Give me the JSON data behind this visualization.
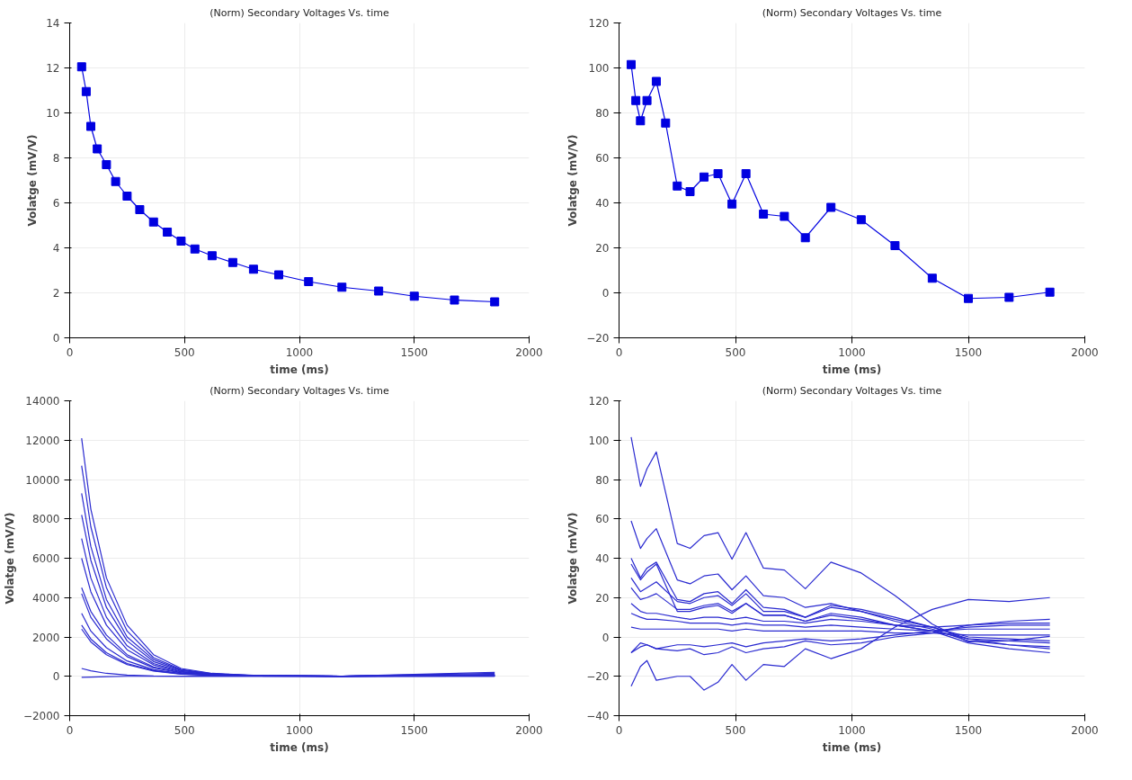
{
  "chart_data": [
    {
      "type": "line",
      "title": "(Norm) Secondary Voltages Vs. time",
      "xlabel": "time (ms)",
      "ylabel": "Volatge (mV/V)",
      "x": [
        52,
        72,
        92,
        120,
        160,
        200,
        250,
        305,
        365,
        425,
        485,
        545,
        620,
        710,
        800,
        910,
        1040,
        1185,
        1345,
        1500,
        1675,
        1850
      ],
      "xlim": [
        0,
        2000
      ],
      "xticks": [
        0,
        500,
        1000,
        1500,
        2000
      ],
      "ylim": [
        0,
        14
      ],
      "yticks": [
        0,
        2,
        4,
        6,
        8,
        10,
        12,
        14
      ],
      "grid": true,
      "marker": "square",
      "series": [
        {
          "color": "#0000e0",
          "values": [
            12.05,
            10.95,
            9.4,
            8.4,
            7.7,
            6.95,
            6.3,
            5.7,
            5.15,
            4.7,
            4.3,
            3.95,
            3.65,
            3.35,
            3.05,
            2.8,
            2.5,
            2.25,
            2.08,
            1.85,
            1.68,
            1.6
          ]
        }
      ]
    },
    {
      "type": "line",
      "title": "(Norm) Secondary Voltages Vs. time",
      "xlabel": "time (ms)",
      "ylabel": "Volatge (mV/V)",
      "x": [
        52,
        72,
        92,
        120,
        160,
        200,
        250,
        305,
        365,
        425,
        485,
        545,
        620,
        710,
        800,
        910,
        1040,
        1185,
        1345,
        1500,
        1675,
        1850
      ],
      "xlim": [
        0,
        2000
      ],
      "xticks": [
        0,
        500,
        1000,
        1500,
        2000
      ],
      "ylim": [
        -20,
        120
      ],
      "yticks": [
        -20,
        0,
        20,
        40,
        60,
        80,
        100,
        120
      ],
      "grid": true,
      "marker": "square",
      "series": [
        {
          "color": "#0000e0",
          "values": [
            101.5,
            85.5,
            76.5,
            85.5,
            94,
            75.5,
            47.5,
            45,
            51.5,
            53,
            39.5,
            53,
            35,
            34,
            24.5,
            38,
            32.5,
            21,
            6.5,
            -2.5,
            -2,
            0.3
          ]
        }
      ]
    },
    {
      "type": "line",
      "title": "(Norm) Secondary Voltages Vs. time",
      "xlabel": "time (ms)",
      "ylabel": "Volatge (mV/V)",
      "x": [
        52,
        92,
        160,
        250,
        365,
        485,
        620,
        800,
        1185,
        1850
      ],
      "xlim": [
        0,
        2000
      ],
      "xticks": [
        0,
        500,
        1000,
        1500,
        2000
      ],
      "ylim": [
        -2000,
        14000
      ],
      "yticks": [
        -2000,
        0,
        2000,
        4000,
        6000,
        8000,
        10000,
        12000,
        14000
      ],
      "grid": true,
      "series": [
        {
          "color": "#2a2ad0",
          "values": [
            12100,
            8500,
            5000,
            2600,
            1100,
            400,
            150,
            50,
            10,
            200
          ]
        },
        {
          "color": "#2a2ad0",
          "values": [
            10700,
            7600,
            4500,
            2300,
            950,
            350,
            130,
            40,
            10,
            150
          ]
        },
        {
          "color": "#2a2ad0",
          "values": [
            9300,
            6600,
            3900,
            2000,
            850,
            320,
            120,
            40,
            10,
            100
          ]
        },
        {
          "color": "#2a2ad0",
          "values": [
            8200,
            5900,
            3500,
            1800,
            750,
            290,
            110,
            35,
            10,
            80
          ]
        },
        {
          "color": "#2a2ad0",
          "values": [
            7000,
            5000,
            3000,
            1550,
            650,
            250,
            100,
            30,
            5,
            60
          ]
        },
        {
          "color": "#2a2ad0",
          "values": [
            6000,
            4300,
            2600,
            1350,
            580,
            220,
            90,
            30,
            5,
            50
          ]
        },
        {
          "color": "#2a2ad0",
          "values": [
            4500,
            3300,
            2100,
            1100,
            480,
            190,
            80,
            25,
            5,
            40
          ]
        },
        {
          "color": "#2a2ad0",
          "values": [
            4200,
            3000,
            1900,
            1000,
            430,
            170,
            70,
            20,
            5,
            30
          ]
        },
        {
          "color": "#2a2ad0",
          "values": [
            3200,
            2300,
            1450,
            780,
            340,
            140,
            60,
            20,
            5,
            20
          ]
        },
        {
          "color": "#2a2ad0",
          "values": [
            2600,
            1900,
            1200,
            650,
            290,
            120,
            50,
            15,
            5,
            20
          ]
        },
        {
          "color": "#2a2ad0",
          "values": [
            2400,
            1750,
            1100,
            600,
            270,
            110,
            45,
            15,
            5,
            10
          ]
        },
        {
          "color": "#2a2ad0",
          "values": [
            400,
            280,
            150,
            60,
            20,
            10,
            5,
            0,
            0,
            10
          ]
        },
        {
          "color": "#2a2ad0",
          "values": [
            -50,
            -40,
            -20,
            0,
            0,
            0,
            0,
            0,
            0,
            50
          ]
        }
      ]
    },
    {
      "type": "line",
      "title": "(Norm) Secondary Voltages Vs. time",
      "xlabel": "time (ms)",
      "ylabel": "Volatge (mV/V)",
      "x": [
        52,
        92,
        120,
        160,
        250,
        305,
        365,
        425,
        485,
        545,
        620,
        710,
        800,
        910,
        1040,
        1185,
        1345,
        1500,
        1675,
        1850
      ],
      "xlim": [
        0,
        2000
      ],
      "xticks": [
        0,
        500,
        1000,
        1500,
        2000
      ],
      "ylim": [
        -40,
        120
      ],
      "yticks": [
        -40,
        -20,
        0,
        20,
        40,
        60,
        80,
        100,
        120
      ],
      "grid": true,
      "series": [
        {
          "color": "#2a2ad0",
          "values": [
            101.5,
            76.5,
            85.5,
            94,
            47.5,
            45,
            51.5,
            53,
            39.5,
            53,
            35,
            34,
            24.5,
            38,
            32.5,
            21,
            6.5,
            -2.5,
            -2,
            0.3
          ]
        },
        {
          "color": "#2a2ad0",
          "values": [
            59,
            45,
            50,
            55,
            29,
            27,
            31,
            32,
            24,
            31,
            21,
            20,
            15,
            17,
            13,
            8,
            4,
            -2,
            -4,
            -5
          ]
        },
        {
          "color": "#2a2ad0",
          "values": [
            40,
            30,
            35,
            38,
            19,
            18,
            22,
            23,
            17,
            24,
            15,
            14,
            10,
            16,
            14,
            10,
            5,
            -1,
            -4,
            -6
          ]
        },
        {
          "color": "#2a2ad0",
          "values": [
            37,
            29,
            33,
            37,
            13,
            13,
            15,
            16,
            12,
            17,
            11,
            11,
            8,
            12,
            10,
            6,
            3,
            -3,
            -6,
            -8
          ]
        },
        {
          "color": "#2a2ad0",
          "values": [
            30,
            23,
            25,
            28,
            18,
            17,
            20,
            21,
            16,
            22,
            13,
            13,
            10,
            15,
            13,
            9,
            5,
            0,
            -1,
            -2
          ]
        },
        {
          "color": "#2a2ad0",
          "values": [
            25,
            19,
            20,
            22,
            14,
            14,
            16,
            17,
            13,
            17,
            11,
            11,
            8,
            11,
            9,
            6,
            3,
            -1,
            -2,
            -3
          ]
        },
        {
          "color": "#2a2ad0",
          "values": [
            17,
            13,
            12,
            12,
            10,
            9,
            10,
            10,
            9,
            10,
            8,
            8,
            7,
            9,
            8,
            6,
            5,
            6,
            7,
            7
          ]
        },
        {
          "color": "#2a2ad0",
          "values": [
            12,
            10,
            9,
            9,
            8,
            7,
            7,
            7,
            6,
            7,
            6,
            6,
            5,
            6,
            5,
            4,
            3,
            4,
            4,
            4
          ]
        },
        {
          "color": "#2a2ad0",
          "values": [
            5,
            4,
            4,
            4,
            4,
            4,
            4,
            4,
            3,
            4,
            3,
            3,
            3,
            3,
            3,
            2,
            2,
            1,
            1,
            1
          ]
        },
        {
          "color": "#2a2ad0",
          "values": [
            -8,
            -3,
            -4,
            -6,
            -4,
            -4,
            -5,
            -4,
            -3,
            -5,
            -3,
            -2,
            -1,
            -2,
            -1,
            1,
            3,
            5,
            6,
            6
          ]
        },
        {
          "color": "#2a2ad0",
          "values": [
            -8,
            -5,
            -4,
            -6,
            -7,
            -6,
            -9,
            -8,
            -5,
            -8,
            -6,
            -5,
            -2,
            -4,
            -3,
            0,
            2,
            6,
            8,
            9
          ]
        },
        {
          "color": "#2a2ad0",
          "values": [
            -25,
            -15,
            -12,
            -22,
            -20,
            -20,
            -27,
            -23,
            -14,
            -22,
            -14,
            -15,
            -6,
            -11,
            -6,
            5,
            14,
            19,
            18,
            20
          ]
        }
      ]
    }
  ]
}
